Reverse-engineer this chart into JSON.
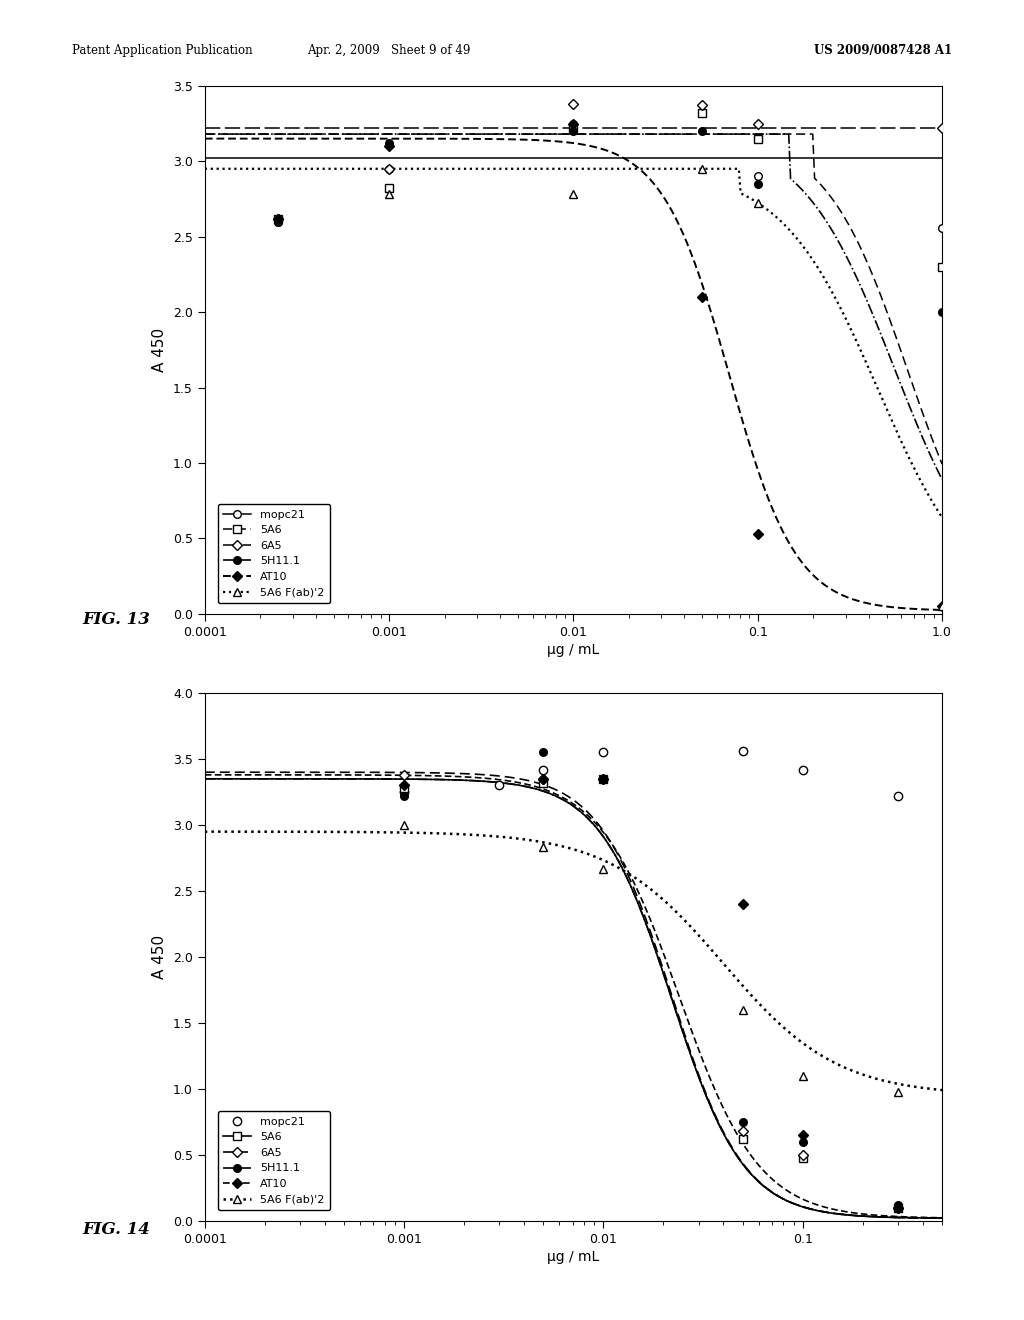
{
  "header_left": "Patent Application Publication",
  "header_mid": "Apr. 2, 2009   Sheet 9 of 49",
  "header_right": "US 2009/0087428 A1",
  "fig13": {
    "label": "FIG. 13",
    "ylabel": "A 450",
    "xlabel": "μg / mL",
    "xlim": [
      0.0001,
      1.0
    ],
    "ylim": [
      0.0,
      3.5
    ],
    "yticks": [
      0.0,
      0.5,
      1.0,
      1.5,
      2.0,
      2.5,
      3.0,
      3.5
    ],
    "xticks": [
      0.0001,
      0.001,
      0.01,
      0.1,
      1.0
    ],
    "xticklabels": [
      "0.0001",
      "0.001",
      "0.01",
      "0.1",
      "1.0"
    ]
  },
  "fig14": {
    "label": "FIG. 14",
    "ylabel": "A 450",
    "xlabel": "μg / mL",
    "xlim": [
      0.0001,
      0.5
    ],
    "ylim": [
      0.0,
      4.0
    ],
    "yticks": [
      0.0,
      0.5,
      1.0,
      1.5,
      2.0,
      2.5,
      3.0,
      3.5,
      4.0
    ],
    "xticks": [
      0.0001,
      0.001,
      0.01,
      0.1
    ],
    "xticklabels": [
      "0.0001",
      "0.001",
      "0.01",
      "0.1"
    ]
  },
  "background_color": "#ffffff"
}
